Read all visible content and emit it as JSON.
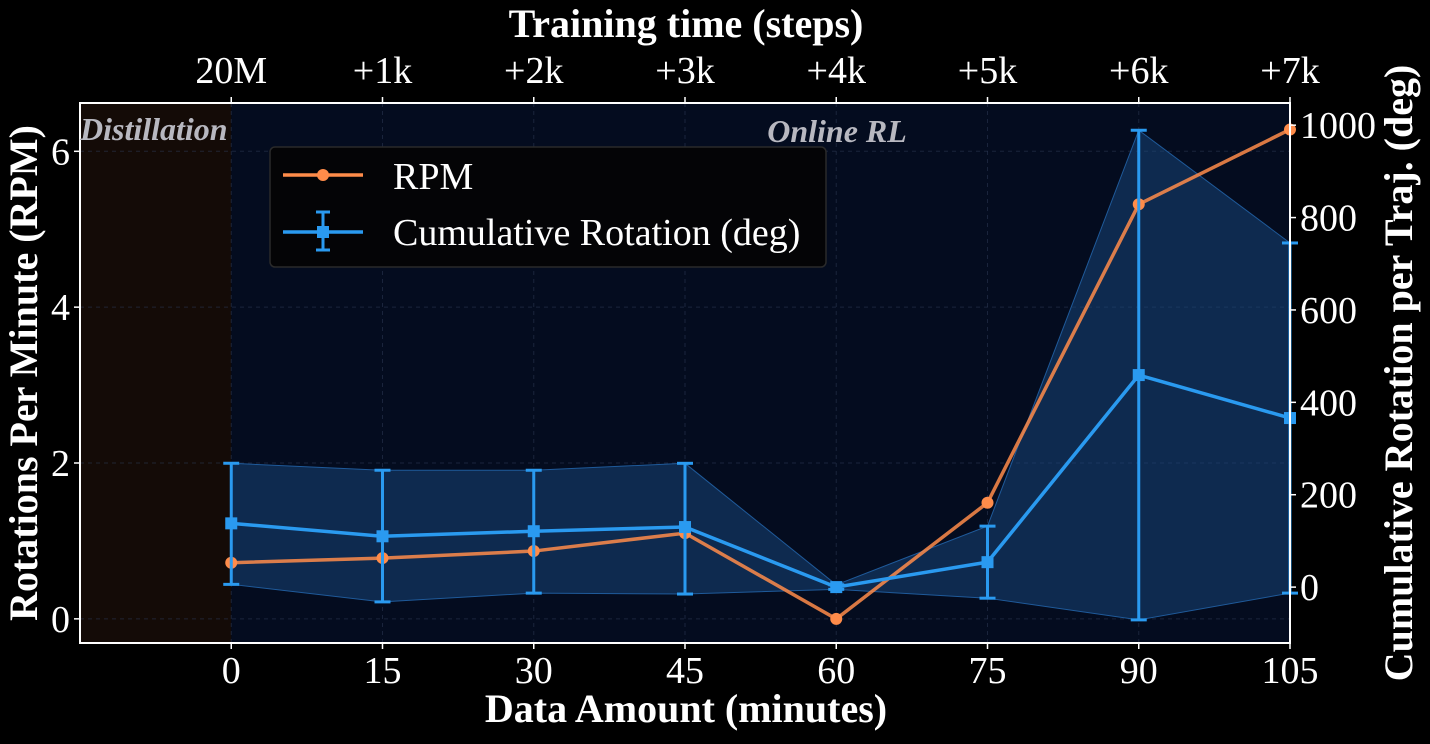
{
  "chart_data": {
    "type": "line",
    "xlabel": "Data Amount (minutes)",
    "top_xlabel": "Training time (steps)",
    "ylabel_left": "Rotations Per Minute (RPM)",
    "ylabel_right": "Cumulative Rotation per Traj. (deg)",
    "xlim": [
      -15,
      105
    ],
    "ylim_left": [
      -0.31,
      6.62
    ],
    "ylim_right": [
      -121,
      1048
    ],
    "x_ticks": [
      0,
      15,
      30,
      45,
      60,
      75,
      90,
      105
    ],
    "x_tick_labels": [
      "0",
      "15",
      "30",
      "45",
      "60",
      "75",
      "90",
      "105"
    ],
    "top_tick_labels": [
      "20M",
      "+1k",
      "+2k",
      "+3k",
      "+4k",
      "+5k",
      "+6k",
      "+7k"
    ],
    "y_left_ticks": [
      0,
      2,
      4,
      6
    ],
    "y_left_tick_labels": [
      "0",
      "2",
      "4",
      "6"
    ],
    "y_right_ticks": [
      0,
      200,
      400,
      600,
      800,
      1000
    ],
    "y_right_tick_labels": [
      "0",
      "200",
      "400",
      "600",
      "800",
      "1000"
    ],
    "grid": true,
    "legend_placement": "upper-left",
    "regions": [
      {
        "label": "Distillation",
        "x_range": [
          -15,
          0
        ],
        "color": "#140b07"
      },
      {
        "label": "Online RL",
        "x_range": [
          0,
          105
        ],
        "color": "#040c1f"
      }
    ],
    "x": [
      0,
      15,
      30,
      45,
      60,
      75,
      90,
      105
    ],
    "series": [
      {
        "name": "RPM",
        "axis": "left",
        "color": "#ff8c4a",
        "marker": "circle",
        "values": [
          0.72,
          0.78,
          0.87,
          1.1,
          0.0,
          1.49,
          5.32,
          6.28
        ]
      },
      {
        "name": "Cumulative Rotation (deg)",
        "axis": "right",
        "color": "#2a9af0",
        "marker": "square",
        "values": [
          138,
          110,
          121,
          130,
          0,
          54,
          459,
          366
        ],
        "err_upper": [
          268,
          253,
          253,
          268,
          5,
          132,
          989,
          745
        ],
        "err_lower": [
          6,
          -32,
          -13,
          -15,
          -5,
          -24,
          -71,
          -13
        ]
      }
    ]
  }
}
